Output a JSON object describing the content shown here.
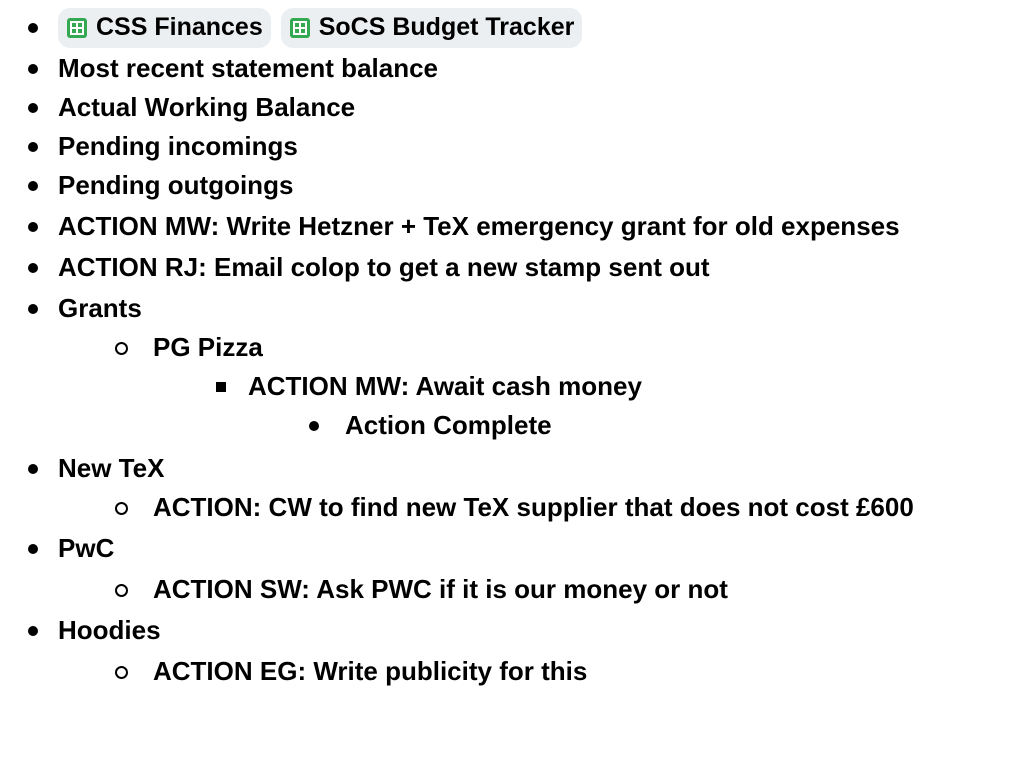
{
  "items": [
    {
      "level": 0,
      "chips": [
        "CSS Finances",
        "SoCS Budget Tracker"
      ]
    },
    {
      "level": 0,
      "text": "Most recent statement balance"
    },
    {
      "level": 0,
      "text": "Actual Working Balance"
    },
    {
      "level": 0,
      "text": "Pending incomings"
    },
    {
      "level": 0,
      "text": "Pending outgoings"
    },
    {
      "level": 0,
      "text": "ACTION MW: Write Hetzner + TeX emergency grant for old expenses"
    },
    {
      "level": 0,
      "text": "ACTION RJ: Email colop to get a new stamp sent out"
    },
    {
      "level": 0,
      "text": "Grants"
    },
    {
      "level": 1,
      "text": "PG Pizza"
    },
    {
      "level": 2,
      "text": "ACTION MW: Await cash money"
    },
    {
      "level": 3,
      "text": "Action Complete"
    },
    {
      "level": 0,
      "text": "New TeX"
    },
    {
      "level": 1,
      "text": "ACTION: CW to find new TeX supplier that does not cost £600"
    },
    {
      "level": 0,
      "text": "PwC"
    },
    {
      "level": 1,
      "text": "ACTION SW: Ask PWC if it is our money or not"
    },
    {
      "level": 0,
      "text": "Hoodies"
    },
    {
      "level": 1,
      "text": "ACTION EG: Write publicity for this"
    }
  ]
}
